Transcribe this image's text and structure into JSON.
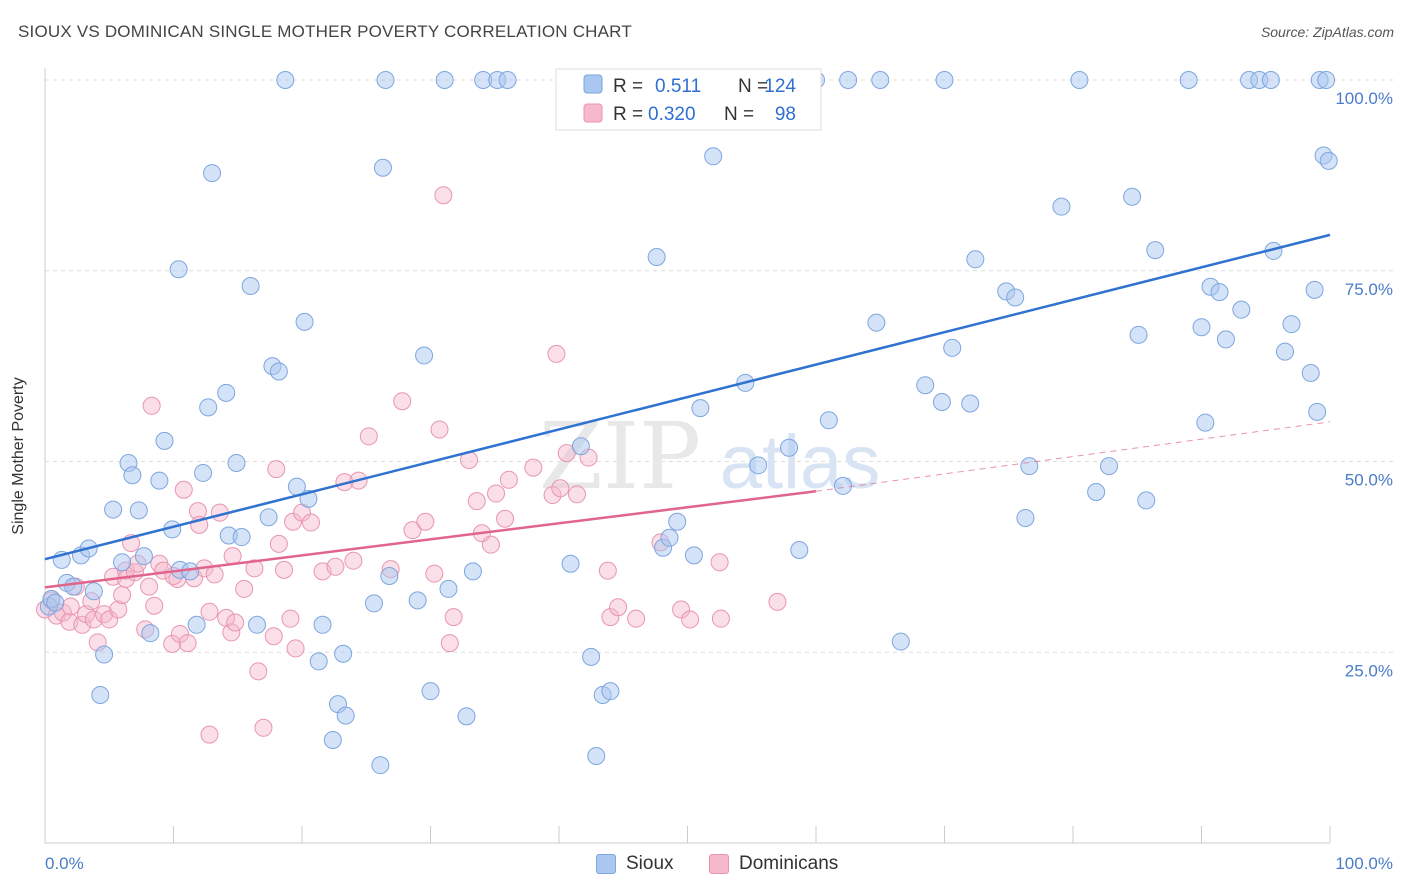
{
  "title": "SIOUX VS DOMINICAN SINGLE MOTHER POVERTY CORRELATION CHART",
  "source": "Source: ZipAtlas.com",
  "watermark": {
    "part1": "ZIP",
    "part2": "atlas"
  },
  "colors": {
    "sioux": "#a9c7f0",
    "sioux_edge": "#7ea6de",
    "sioux_line": "#2f72d0",
    "dominicans": "#f5b9cb",
    "dominicans_edge": "#e995b0",
    "dominicans_line": "#e0648c",
    "tick_text": "#4a7cc9",
    "grid": "#dddddd"
  },
  "legend": {
    "sioux": {
      "r_label": "R =",
      "r_value": "0.511",
      "n_label": "N =",
      "n_value": "124"
    },
    "dominicans": {
      "r_label": "R =",
      "r_value": "0.320",
      "n_label": "N =",
      "n_value": "98"
    }
  },
  "bottom_legend": {
    "sioux": "Sioux",
    "dominicans": "Dominicans"
  },
  "chart_data": {
    "type": "scatter",
    "title": "SIOUX VS DOMINICAN SINGLE MOTHER POVERTY CORRELATION CHART",
    "xlabel": "",
    "ylabel": "Single Mother Poverty",
    "xlim": [
      0,
      100
    ],
    "ylim": [
      0,
      105
    ],
    "x_tick_labels": [
      "0.0%",
      "100.0%"
    ],
    "y_ticks": [
      25,
      50,
      75,
      100
    ],
    "y_tick_labels": [
      "25.0%",
      "50.0%",
      "75.0%",
      "100.0%"
    ],
    "grid": true,
    "legend_position": "top-center",
    "series": [
      {
        "name": "Sioux",
        "r": 0.511,
        "n": 124,
        "trend": {
          "x": [
            0,
            100
          ],
          "y": [
            37.2,
            79.7
          ]
        },
        "points": [
          [
            0.3,
            31.0
          ],
          [
            0.5,
            32.0
          ],
          [
            0.8,
            31.5
          ],
          [
            1.3,
            37.1
          ],
          [
            1.7,
            34.1
          ],
          [
            2.2,
            33.6
          ],
          [
            2.8,
            37.7
          ],
          [
            3.4,
            38.6
          ],
          [
            3.8,
            33.0
          ],
          [
            4.3,
            19.4
          ],
          [
            4.6,
            24.7
          ],
          [
            5.3,
            43.7
          ],
          [
            6.0,
            36.8
          ],
          [
            6.5,
            49.8
          ],
          [
            6.8,
            48.2
          ],
          [
            7.3,
            43.6
          ],
          [
            7.7,
            37.6
          ],
          [
            8.2,
            27.5
          ],
          [
            8.9,
            47.5
          ],
          [
            9.3,
            52.7
          ],
          [
            9.9,
            41.1
          ],
          [
            10.4,
            75.2
          ],
          [
            10.5,
            35.8
          ],
          [
            11.3,
            35.6
          ],
          [
            11.8,
            28.6
          ],
          [
            12.3,
            48.5
          ],
          [
            12.7,
            57.1
          ],
          [
            13.0,
            87.8
          ],
          [
            14.1,
            59.0
          ],
          [
            14.3,
            40.3
          ],
          [
            14.9,
            49.8
          ],
          [
            15.3,
            40.1
          ],
          [
            16.0,
            73.0
          ],
          [
            16.5,
            28.6
          ],
          [
            17.4,
            42.7
          ],
          [
            17.7,
            62.5
          ],
          [
            18.2,
            61.8
          ],
          [
            18.7,
            100.0
          ],
          [
            19.6,
            46.7
          ],
          [
            20.2,
            68.3
          ],
          [
            20.5,
            45.1
          ],
          [
            21.3,
            23.8
          ],
          [
            21.6,
            28.6
          ],
          [
            22.4,
            13.5
          ],
          [
            22.8,
            18.2
          ],
          [
            23.4,
            16.7
          ],
          [
            23.2,
            24.8
          ],
          [
            25.6,
            31.4
          ],
          [
            26.1,
            10.2
          ],
          [
            26.5,
            100.0
          ],
          [
            26.3,
            88.5
          ],
          [
            26.8,
            35.0
          ],
          [
            29.0,
            31.8
          ],
          [
            29.5,
            63.9
          ],
          [
            30.0,
            19.9
          ],
          [
            31.1,
            100.0
          ],
          [
            31.4,
            33.3
          ],
          [
            32.8,
            16.6
          ],
          [
            33.3,
            35.6
          ],
          [
            34.1,
            100.0
          ],
          [
            35.2,
            100.0
          ],
          [
            36.0,
            100.0
          ],
          [
            40.9,
            36.6
          ],
          [
            41.7,
            52.0
          ],
          [
            42.5,
            24.4
          ],
          [
            42.9,
            11.4
          ],
          [
            43.4,
            19.4
          ],
          [
            44.0,
            19.9
          ],
          [
            47.6,
            76.8
          ],
          [
            48.1,
            38.7
          ],
          [
            48.6,
            40.0
          ],
          [
            49.2,
            42.1
          ],
          [
            50.5,
            37.7
          ],
          [
            51.0,
            57.0
          ],
          [
            52.0,
            90.0
          ],
          [
            54.5,
            60.3
          ],
          [
            55.5,
            49.5
          ],
          [
            57.9,
            51.8
          ],
          [
            58.7,
            38.4
          ],
          [
            60.0,
            100.0
          ],
          [
            61.0,
            55.4
          ],
          [
            62.1,
            46.8
          ],
          [
            62.5,
            100.0
          ],
          [
            64.7,
            68.2
          ],
          [
            65.0,
            100.0
          ],
          [
            66.6,
            26.4
          ],
          [
            68.5,
            60.0
          ],
          [
            69.8,
            57.8
          ],
          [
            70.0,
            100.0
          ],
          [
            70.6,
            64.9
          ],
          [
            72.0,
            57.6
          ],
          [
            72.4,
            76.5
          ],
          [
            74.8,
            72.3
          ],
          [
            75.5,
            71.5
          ],
          [
            76.3,
            42.6
          ],
          [
            76.6,
            49.4
          ],
          [
            79.1,
            83.4
          ],
          [
            80.5,
            100.0
          ],
          [
            81.8,
            46.0
          ],
          [
            82.8,
            49.4
          ],
          [
            84.6,
            84.7
          ],
          [
            85.1,
            66.6
          ],
          [
            85.7,
            44.9
          ],
          [
            86.4,
            77.7
          ],
          [
            89.0,
            100.0
          ],
          [
            90.0,
            67.6
          ],
          [
            90.3,
            55.1
          ],
          [
            90.7,
            72.9
          ],
          [
            91.4,
            72.2
          ],
          [
            91.9,
            66.0
          ],
          [
            93.1,
            69.9
          ],
          [
            93.7,
            100.0
          ],
          [
            94.5,
            100.0
          ],
          [
            95.4,
            100.0
          ],
          [
            95.6,
            77.6
          ],
          [
            96.5,
            64.4
          ],
          [
            97.0,
            68.0
          ],
          [
            98.5,
            61.6
          ],
          [
            98.8,
            72.5
          ],
          [
            99.2,
            100.0
          ],
          [
            99.0,
            56.5
          ],
          [
            99.5,
            90.1
          ],
          [
            99.7,
            100.0
          ],
          [
            99.9,
            89.4
          ]
        ]
      },
      {
        "name": "Dominicans",
        "r": 0.32,
        "n": 98,
        "trend": {
          "x": [
            0,
            60
          ],
          "y": [
            33.5,
            46.1
          ]
        },
        "trend_dashed": {
          "x": [
            60,
            100
          ],
          "y": [
            46.1,
            55.2
          ]
        },
        "points": [
          [
            0.0,
            30.6
          ],
          [
            0.5,
            31.8
          ],
          [
            0.9,
            29.8
          ],
          [
            1.4,
            30.2
          ],
          [
            1.9,
            29.0
          ],
          [
            2.4,
            33.6
          ],
          [
            2.9,
            28.6
          ],
          [
            3.2,
            30.0
          ],
          [
            3.6,
            31.7
          ],
          [
            3.8,
            29.3
          ],
          [
            4.1,
            26.3
          ],
          [
            4.6,
            30.0
          ],
          [
            5.0,
            29.3
          ],
          [
            5.3,
            34.9
          ],
          [
            5.7,
            30.6
          ],
          [
            6.3,
            35.7
          ],
          [
            6.3,
            34.6
          ],
          [
            6.7,
            39.3
          ],
          [
            7.0,
            35.5
          ],
          [
            7.2,
            36.6
          ],
          [
            7.8,
            28.0
          ],
          [
            8.1,
            33.6
          ],
          [
            8.3,
            57.3
          ],
          [
            8.5,
            31.1
          ],
          [
            8.9,
            36.6
          ],
          [
            9.2,
            35.7
          ],
          [
            9.9,
            26.1
          ],
          [
            10.3,
            34.6
          ],
          [
            10.5,
            27.4
          ],
          [
            10.8,
            46.3
          ],
          [
            11.1,
            26.2
          ],
          [
            11.6,
            34.7
          ],
          [
            11.9,
            43.5
          ],
          [
            12.0,
            41.7
          ],
          [
            12.4,
            36.0
          ],
          [
            12.8,
            30.3
          ],
          [
            13.2,
            35.2
          ],
          [
            13.6,
            43.3
          ],
          [
            14.1,
            29.5
          ],
          [
            14.5,
            27.6
          ],
          [
            15.5,
            33.3
          ],
          [
            16.3,
            36.0
          ],
          [
            16.6,
            22.5
          ],
          [
            17.0,
            15.1
          ],
          [
            17.8,
            27.1
          ],
          [
            18.2,
            39.2
          ],
          [
            18.6,
            35.8
          ],
          [
            19.1,
            29.4
          ],
          [
            19.3,
            42.1
          ],
          [
            19.5,
            25.5
          ],
          [
            20.0,
            43.3
          ],
          [
            20.7,
            42.0
          ],
          [
            21.6,
            35.6
          ],
          [
            22.6,
            36.2
          ],
          [
            23.3,
            47.3
          ],
          [
            24.0,
            37.0
          ],
          [
            24.4,
            47.5
          ],
          [
            25.2,
            53.3
          ],
          [
            26.9,
            35.9
          ],
          [
            27.8,
            57.9
          ],
          [
            28.6,
            41.0
          ],
          [
            29.6,
            42.1
          ],
          [
            30.3,
            35.3
          ],
          [
            30.7,
            54.2
          ],
          [
            31.5,
            26.2
          ],
          [
            31.8,
            29.6
          ],
          [
            33.6,
            44.8
          ],
          [
            34.0,
            40.6
          ],
          [
            34.7,
            39.1
          ],
          [
            35.1,
            45.8
          ],
          [
            35.8,
            42.5
          ],
          [
            36.1,
            47.6
          ],
          [
            38.0,
            49.2
          ],
          [
            39.5,
            45.6
          ],
          [
            39.8,
            64.1
          ],
          [
            40.1,
            46.5
          ],
          [
            40.6,
            51.1
          ],
          [
            41.4,
            45.7
          ],
          [
            42.3,
            50.5
          ],
          [
            43.8,
            35.7
          ],
          [
            44.0,
            29.6
          ],
          [
            44.6,
            30.9
          ],
          [
            46.0,
            29.4
          ],
          [
            47.9,
            39.4
          ],
          [
            49.5,
            30.6
          ],
          [
            50.2,
            29.3
          ],
          [
            52.6,
            29.4
          ],
          [
            52.5,
            36.8
          ],
          [
            57.0,
            31.6
          ],
          [
            18.0,
            49.0
          ],
          [
            31.0,
            84.9
          ],
          [
            33.0,
            50.2
          ],
          [
            10.0,
            35.0
          ],
          [
            14.8,
            28.9
          ],
          [
            2.0,
            31.0
          ],
          [
            6.0,
            32.5
          ],
          [
            12.8,
            14.2
          ],
          [
            14.6,
            37.6
          ]
        ]
      }
    ]
  }
}
